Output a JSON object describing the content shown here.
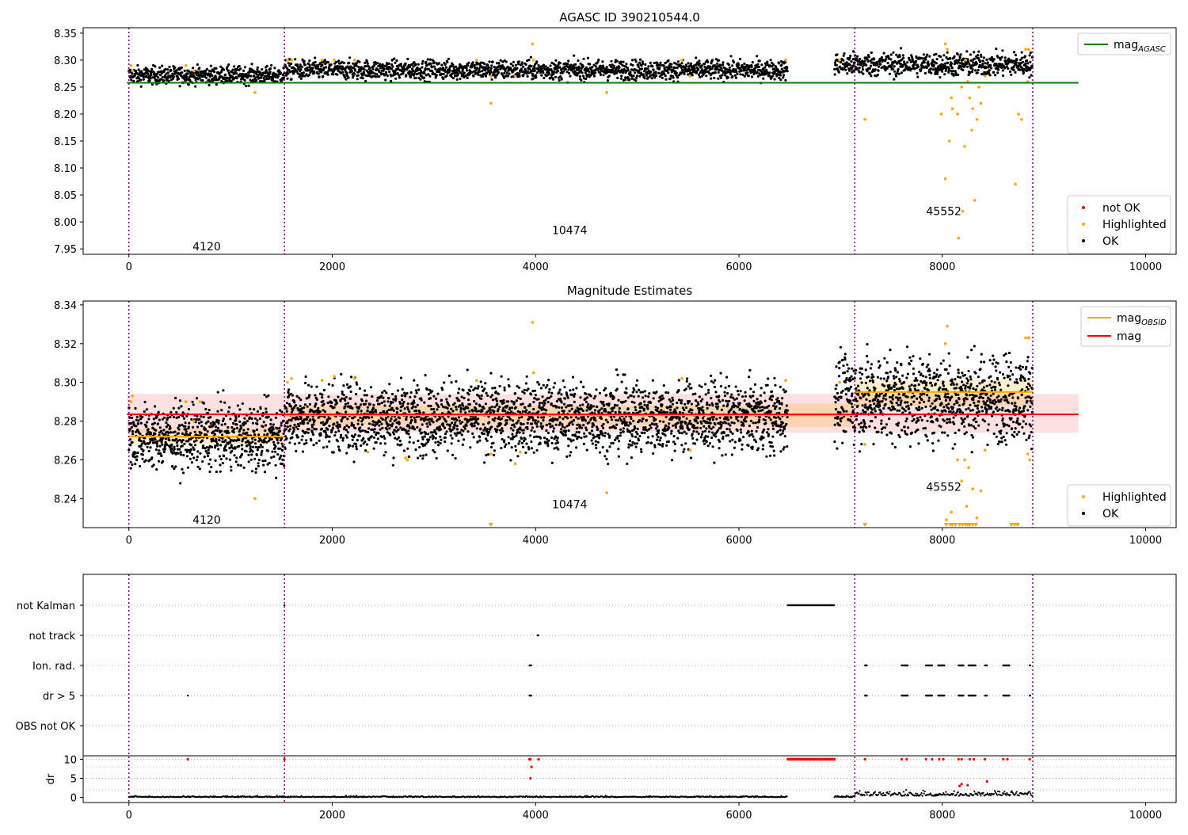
{
  "chart_data": [
    {
      "type": "scatter",
      "title": "AGASC ID 390210544.0",
      "xlim": [
        -450,
        10300
      ],
      "ylim": [
        7.94,
        8.36
      ],
      "x_ticks": [
        "0",
        "2000",
        "4000",
        "6000",
        "8000",
        "10000"
      ],
      "y_ticks": [
        "7.95",
        "8.00",
        "8.05",
        "8.10",
        "8.15",
        "8.20",
        "8.25",
        "8.30",
        "8.35"
      ],
      "grid": false,
      "vlines": [
        0,
        1530,
        7140,
        8890
      ],
      "obsid_labels": [
        {
          "text": "4120",
          "x": 765,
          "y": 7.955
        },
        {
          "text": "10474",
          "x": 4335,
          "y": 7.985
        },
        {
          "text": "45552",
          "x": 8015,
          "y": 8.02
        }
      ],
      "ok_bands": [
        {
          "x0": 0,
          "x1": 1530,
          "center": 8.272,
          "spread": 0.008
        },
        {
          "x0": 1530,
          "x1": 6480,
          "center": 8.282,
          "spread": 0.009
        },
        {
          "x0": 6940,
          "x1": 8890,
          "center": 8.292,
          "spread": 0.011
        }
      ],
      "highlighted": [
        [
          20,
          8.29
        ],
        [
          35,
          8.28
        ],
        [
          560,
          8.29
        ],
        [
          640,
          8.28
        ],
        [
          1240,
          8.24
        ],
        [
          1560,
          8.3
        ],
        [
          1600,
          8.3
        ],
        [
          1900,
          8.3
        ],
        [
          2020,
          8.3
        ],
        [
          2220,
          8.3
        ],
        [
          3420,
          8.3
        ],
        [
          3560,
          8.22
        ],
        [
          3560,
          8.27
        ],
        [
          3800,
          8.27
        ],
        [
          3970,
          8.33
        ],
        [
          3980,
          8.3
        ],
        [
          4700,
          8.24
        ],
        [
          5440,
          8.3
        ],
        [
          5520,
          8.27
        ],
        [
          6460,
          8.3
        ],
        [
          6990,
          8.3
        ],
        [
          7240,
          8.19
        ],
        [
          7990,
          8.2
        ],
        [
          8030,
          8.08
        ],
        [
          8070,
          8.15
        ],
        [
          8090,
          8.23
        ],
        [
          8100,
          8.21
        ],
        [
          8150,
          8.2
        ],
        [
          8160,
          7.97
        ],
        [
          8190,
          8.25
        ],
        [
          8200,
          8.02
        ],
        [
          8220,
          8.14
        ],
        [
          8230,
          8.3
        ],
        [
          8250,
          8.26
        ],
        [
          8270,
          8.23
        ],
        [
          8290,
          8.17
        ],
        [
          8300,
          8.21
        ],
        [
          8320,
          8.04
        ],
        [
          8340,
          8.19
        ],
        [
          8360,
          8.25
        ],
        [
          8380,
          8.22
        ],
        [
          8420,
          8.27
        ],
        [
          8030,
          8.33
        ],
        [
          8050,
          8.32
        ],
        [
          8720,
          8.07
        ],
        [
          8750,
          8.2
        ],
        [
          8780,
          8.19
        ],
        [
          8820,
          8.32
        ],
        [
          8850,
          8.32
        ],
        [
          8840,
          8.26
        ]
      ],
      "not_ok": [],
      "lines": [
        {
          "name": "mag_AGASC",
          "y": 8.258,
          "x0": -20,
          "x1": 9340,
          "color": "#008000"
        }
      ],
      "legend_lines": [
        {
          "label": "mag",
          "subscript": "AGASC",
          "color": "#008000"
        }
      ],
      "legend_points": [
        {
          "label": "not OK",
          "color": "#ff0000"
        },
        {
          "label": "Highlighted",
          "color": "#ffa500"
        },
        {
          "label": "OK",
          "color": "#000000"
        }
      ]
    },
    {
      "type": "scatter",
      "title": "Magnitude Estimates",
      "xlim": [
        -450,
        10300
      ],
      "ylim": [
        8.225,
        8.342
      ],
      "x_ticks": [
        "0",
        "2000",
        "4000",
        "6000",
        "8000",
        "10000"
      ],
      "y_ticks": [
        "8.24",
        "8.26",
        "8.28",
        "8.30",
        "8.32",
        "8.34"
      ],
      "grid": false,
      "vlines": [
        0,
        1530,
        7140,
        8890
      ],
      "obsid_labels": [
        {
          "text": "4120",
          "x": 765,
          "y": 8.229
        },
        {
          "text": "10474",
          "x": 4335,
          "y": 8.237
        },
        {
          "text": "45552",
          "x": 8015,
          "y": 8.246
        }
      ],
      "ok_bands": [
        {
          "x0": 0,
          "x1": 1530,
          "center": 8.272,
          "spread": 0.008
        },
        {
          "x0": 1530,
          "x1": 6480,
          "center": 8.282,
          "spread": 0.009
        },
        {
          "x0": 6940,
          "x1": 8890,
          "center": 8.292,
          "spread": 0.011
        }
      ],
      "highlighted": [
        [
          20,
          8.29
        ],
        [
          35,
          8.293
        ],
        [
          560,
          8.29
        ],
        [
          640,
          8.28
        ],
        [
          700,
          8.29
        ],
        [
          1240,
          8.24
        ],
        [
          1560,
          8.3
        ],
        [
          1600,
          8.302
        ],
        [
          1900,
          8.301
        ],
        [
          2020,
          8.303
        ],
        [
          2220,
          8.302
        ],
        [
          2350,
          8.264
        ],
        [
          2720,
          8.261
        ],
        [
          2740,
          8.26
        ],
        [
          3420,
          8.301
        ],
        [
          3560,
          8.263
        ],
        [
          3800,
          8.258
        ],
        [
          3850,
          8.264
        ],
        [
          3970,
          8.331
        ],
        [
          3980,
          8.305
        ],
        [
          4700,
          8.243
        ],
        [
          5440,
          8.302
        ],
        [
          5520,
          8.265
        ],
        [
          6460,
          8.301
        ],
        [
          6990,
          8.3
        ],
        [
          7240,
          8.268
        ],
        [
          8040,
          8.229
        ],
        [
          8090,
          8.233
        ],
        [
          8150,
          8.26
        ],
        [
          8190,
          8.249
        ],
        [
          8220,
          8.26
        ],
        [
          8240,
          8.236
        ],
        [
          8260,
          8.256
        ],
        [
          8300,
          8.245
        ],
        [
          8340,
          8.23
        ],
        [
          8380,
          8.244
        ],
        [
          8420,
          8.265
        ],
        [
          8030,
          8.32
        ],
        [
          8050,
          8.329
        ],
        [
          8820,
          8.323
        ],
        [
          8850,
          8.323
        ],
        [
          8840,
          8.263
        ],
        [
          8860,
          8.26
        ]
      ],
      "highlighted_clipped": [
        3560,
        7240,
        8040,
        8080,
        8100,
        8130,
        8170,
        8200,
        8230,
        8250,
        8270,
        8300,
        8330,
        8680,
        8710,
        8740
      ],
      "band_fills": [
        {
          "x0": -20,
          "x1": 9340,
          "y0": 8.274,
          "y1": 8.294,
          "color": "#ff0000",
          "opacity": 0.12
        },
        {
          "x0": 0,
          "x1": 1530,
          "y0": 8.268,
          "y1": 8.276,
          "color": "#ffa500",
          "opacity": 0.2
        },
        {
          "x0": 1530,
          "x1": 6480,
          "y0": 8.278,
          "y1": 8.288,
          "color": "#ffa500",
          "opacity": 0.2
        },
        {
          "x0": 6480,
          "x1": 7140,
          "y0": 8.277,
          "y1": 8.289,
          "color": "#ffa500",
          "opacity": 0.2
        },
        {
          "x0": 7140,
          "x1": 8890,
          "y0": 8.288,
          "y1": 8.301,
          "color": "#ffa500",
          "opacity": 0.2
        }
      ],
      "lines": [
        {
          "name": "mag_OBSID 4120",
          "y": 8.272,
          "x0": 0,
          "x1": 1530,
          "color": "#ffa500"
        },
        {
          "name": "mag_OBSID 10474",
          "y": 8.283,
          "x0": 1530,
          "x1": 7140,
          "color": "#ffa500"
        },
        {
          "name": "mag_OBSID 45552",
          "y": 8.295,
          "x0": 7140,
          "x1": 8890,
          "color": "#ffa500"
        },
        {
          "name": "mag",
          "y": 8.2835,
          "x0": -20,
          "x1": 9340,
          "color": "#ff0000"
        }
      ],
      "legend_lines": [
        {
          "label": "mag",
          "subscript": "OBSID",
          "color": "#ffa500"
        },
        {
          "label": "mag",
          "subscript": "",
          "color": "#ff0000"
        }
      ],
      "legend_points": [
        {
          "label": "Highlighted",
          "color": "#ffa500"
        },
        {
          "label": "OK",
          "color": "#000000"
        }
      ]
    },
    {
      "type": "scatter",
      "title": "",
      "xlim": [
        -450,
        10300
      ],
      "x_ticks": [
        "0",
        "2000",
        "4000",
        "6000",
        "8000",
        "10000"
      ],
      "flag_rows": [
        "not Kalman",
        "not track",
        "Ion. rad.",
        "dr > 5",
        "OBS not OK"
      ],
      "vlines": [
        0,
        1530,
        7140,
        8890
      ],
      "flag_points": [
        {
          "row": "not Kalman",
          "segments": [
            [
              1530,
              1535
            ],
            [
              6480,
              6940
            ]
          ]
        },
        {
          "row": "not track",
          "segments": [
            [
              4020,
              4030
            ]
          ]
        },
        {
          "row": "Ion. rad.",
          "segments": [
            [
              3940,
              3960
            ],
            [
              7240,
              7260
            ],
            [
              7600,
              7660
            ],
            [
              7840,
              7900
            ],
            [
              7960,
              8020
            ],
            [
              8160,
              8210
            ],
            [
              8260,
              8330
            ],
            [
              8420,
              8440
            ],
            [
              8600,
              8660
            ],
            [
              8860,
              8870
            ]
          ]
        },
        {
          "row": "dr > 5",
          "segments": [
            [
              580,
              585
            ],
            [
              3940,
              3960
            ],
            [
              7240,
              7260
            ],
            [
              7600,
              7660
            ],
            [
              7840,
              7900
            ],
            [
              7960,
              8020
            ],
            [
              8160,
              8210
            ],
            [
              8260,
              8330
            ],
            [
              8420,
              8440
            ],
            [
              8600,
              8660
            ],
            [
              8860,
              8870
            ]
          ]
        },
        {
          "row": "OBS not OK",
          "segments": []
        }
      ],
      "dr_axis": {
        "ylabel": "dr",
        "ylim": [
          -0.5,
          10.5
        ],
        "y_ticks": [
          "0",
          "5",
          "10"
        ],
        "red_points": [
          [
            580,
            10
          ],
          [
            1530,
            10
          ],
          [
            3940,
            10
          ],
          [
            3950,
            10
          ],
          [
            3960,
            8
          ],
          [
            3950,
            5
          ],
          [
            4030,
            10
          ],
          [
            7240,
            10
          ],
          [
            7600,
            10
          ],
          [
            7650,
            10
          ],
          [
            7840,
            10
          ],
          [
            7900,
            10
          ],
          [
            7970,
            10
          ],
          [
            8010,
            10
          ],
          [
            8160,
            10
          ],
          [
            8190,
            10
          ],
          [
            8270,
            10
          ],
          [
            8310,
            10
          ],
          [
            8420,
            10
          ],
          [
            8600,
            10
          ],
          [
            8640,
            10
          ],
          [
            8860,
            10
          ],
          [
            8170,
            3
          ],
          [
            8190,
            3.5
          ],
          [
            8250,
            3.2
          ],
          [
            8440,
            4.2
          ]
        ],
        "red_segment": [
          6480,
          6940,
          10
        ]
      }
    }
  ]
}
